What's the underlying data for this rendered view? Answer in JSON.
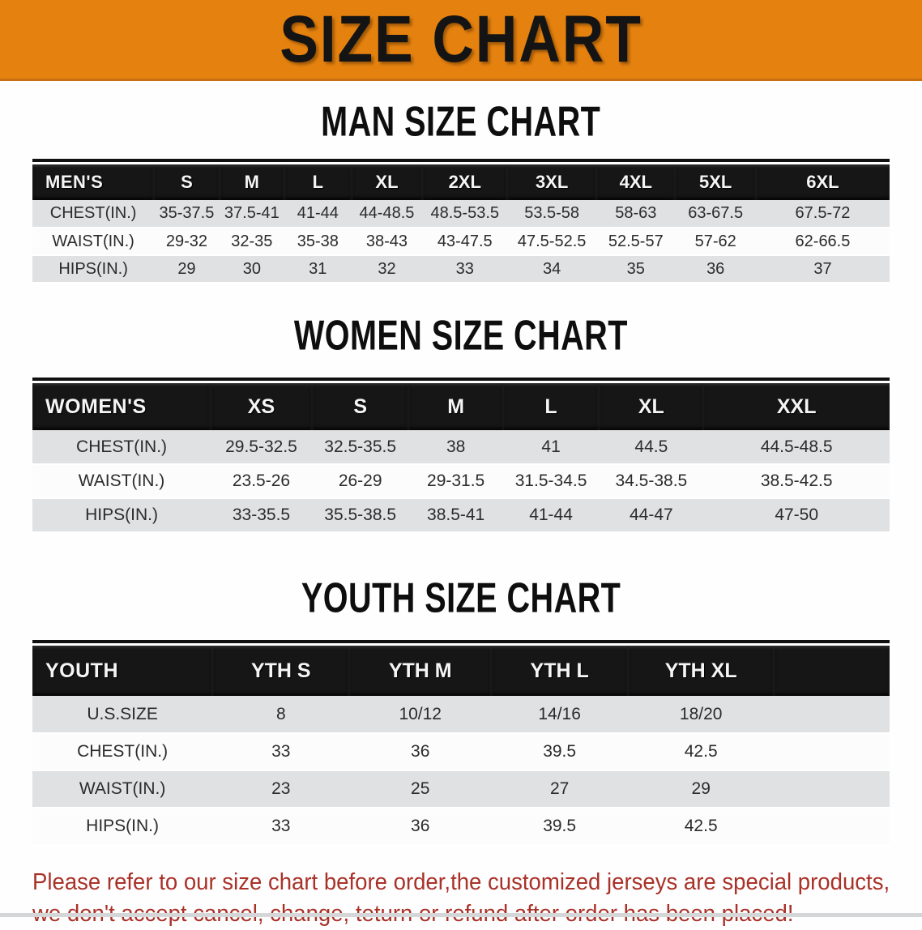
{
  "banner": {
    "title": "SIZE CHART"
  },
  "sections": [
    {
      "heading": "MAN SIZE CHART",
      "table": {
        "label": "MEN'S",
        "columns": [
          "S",
          "M",
          "L",
          "XL",
          "2XL",
          "3XL",
          "4XL",
          "5XL",
          "6XL"
        ],
        "rows": [
          {
            "label": "CHEST(IN.)",
            "values": [
              "35-37.5",
              "37.5-41",
              "41-44",
              "44-48.5",
              "48.5-53.5",
              "53.5-58",
              "58-63",
              "63-67.5",
              "67.5-72"
            ]
          },
          {
            "label": "WAIST(IN.)",
            "values": [
              "29-32",
              "32-35",
              "35-38",
              "38-43",
              "43-47.5",
              "47.5-52.5",
              "52.5-57",
              "57-62",
              "62-66.5"
            ]
          },
          {
            "label": "HIPS(IN.)",
            "values": [
              "29",
              "30",
              "31",
              "32",
              "33",
              "34",
              "35",
              "36",
              "37"
            ]
          }
        ]
      }
    },
    {
      "heading": "WOMEN SIZE CHART",
      "table": {
        "label": "WOMEN'S",
        "columns": [
          "XS",
          "S",
          "M",
          "L",
          "XL",
          "XXL"
        ],
        "rows": [
          {
            "label": "CHEST(IN.)",
            "values": [
              "29.5-32.5",
              "32.5-35.5",
              "38",
              "41",
              "44.5",
              "44.5-48.5"
            ]
          },
          {
            "label": "WAIST(IN.)",
            "values": [
              "23.5-26",
              "26-29",
              "29-31.5",
              "31.5-34.5",
              "34.5-38.5",
              "38.5-42.5"
            ]
          },
          {
            "label": "HIPS(IN.)",
            "values": [
              "33-35.5",
              "35.5-38.5",
              "38.5-41",
              "41-44",
              "44-47",
              "47-50"
            ]
          }
        ]
      }
    },
    {
      "heading": "YOUTH SIZE CHART",
      "table": {
        "label": "YOUTH",
        "columns": [
          "YTH S",
          "YTH M",
          "YTH L",
          "YTH XL"
        ],
        "rows": [
          {
            "label": "U.S.SIZE",
            "values": [
              "8",
              "10/12",
              "14/16",
              "18/20"
            ]
          },
          {
            "label": "CHEST(IN.)",
            "values": [
              "33",
              "36",
              "39.5",
              "42.5"
            ]
          },
          {
            "label": "WAIST(IN.)",
            "values": [
              "23",
              "25",
              "27",
              "29"
            ]
          },
          {
            "label": "HIPS(IN.)",
            "values": [
              "33",
              "36",
              "39.5",
              "42.5"
            ]
          }
        ]
      }
    }
  ],
  "disclaimer": {
    "line1": "Please refer to our size chart before order,the customized jerseys are special products,",
    "line2": "we don't accept cancel, change, teturn or refund after order has been placed!"
  },
  "colors": {
    "banner_bg": "#E5820F",
    "header_bg": "#161616",
    "stripe": "#DFE1E2",
    "disclaimer": "#A93128"
  }
}
